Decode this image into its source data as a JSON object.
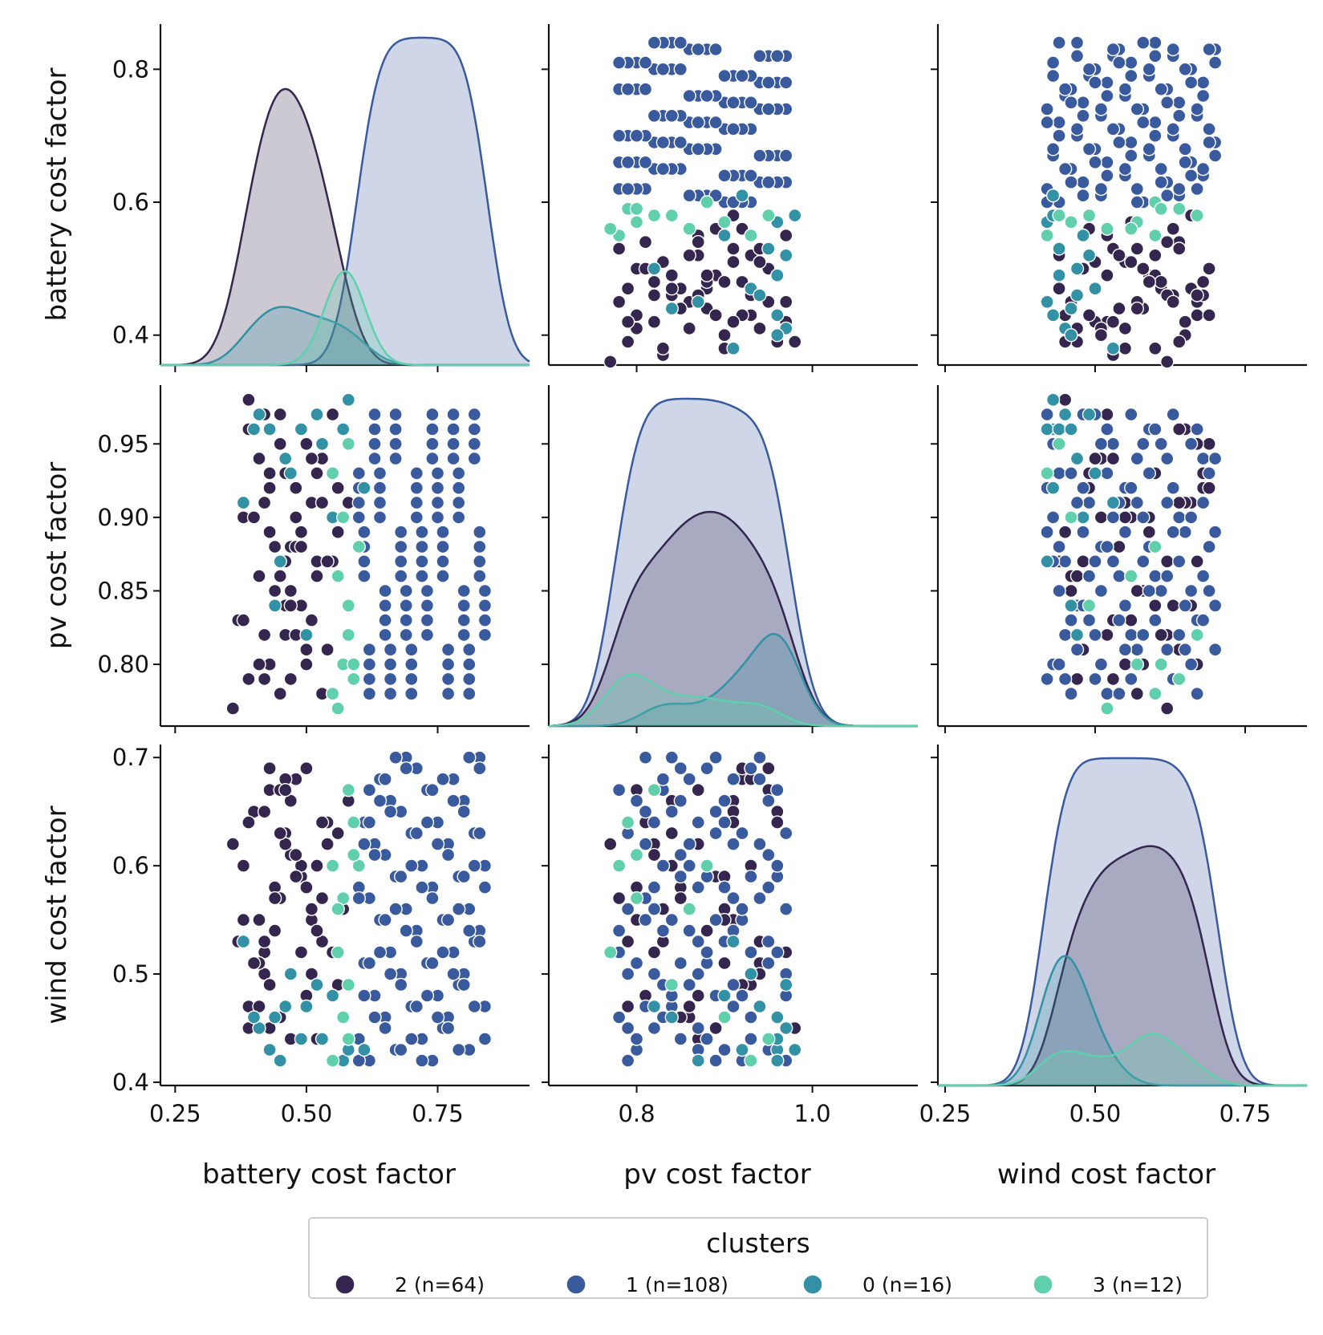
{
  "chart_data": {
    "type": "scatter",
    "variables": [
      "battery cost factor",
      "pv cost factor",
      "wind cost factor"
    ],
    "axis_labels": {
      "x": [
        "battery cost factor",
        "pv cost factor",
        "wind cost factor"
      ],
      "y": [
        "battery cost factor",
        "pv cost factor",
        "wind cost factor"
      ]
    },
    "ranges": {
      "battery": [
        0.222,
        0.925
      ],
      "pv": [
        0.7,
        1.12
      ],
      "wind": [
        0.238,
        0.853
      ],
      "battery_y": [
        0.355,
        0.868
      ],
      "pv_y": [
        0.758,
        0.99
      ],
      "wind_y": [
        0.397,
        0.712
      ]
    },
    "ticks": {
      "battery_x": [
        "0.25",
        "0.50",
        "0.75"
      ],
      "pv_x": [
        "0.8",
        "1.0"
      ],
      "wind_x": [
        "0.25",
        "0.50",
        "0.75"
      ],
      "battery_y": [
        "0.4",
        "0.6",
        "0.8"
      ],
      "pv_y": [
        "0.80",
        "0.85",
        "0.90",
        "0.95"
      ],
      "wind_y": [
        "0.4",
        "0.5",
        "0.6",
        "0.7"
      ]
    },
    "legend": {
      "title": "clusters",
      "placement": "bottom-center",
      "entries": [
        {
          "label": "2 (n=64)",
          "color": "#34264f"
        },
        {
          "label": "1 (n=108)",
          "color": "#3a5a9e"
        },
        {
          "label": "0 (n=16)",
          "color": "#3391a5"
        },
        {
          "label": "3 (n=12)",
          "color": "#5fcfac"
        }
      ]
    },
    "series": [
      {
        "name": "2 (n=64)",
        "color": "#34264f",
        "battery": [
          0.39,
          0.42,
          0.36,
          0.44,
          0.47,
          0.43,
          0.51,
          0.52,
          0.5,
          0.42,
          0.46,
          0.55,
          0.57,
          0.4,
          0.37,
          0.45,
          0.49,
          0.48,
          0.41,
          0.54,
          0.53,
          0.39,
          0.47,
          0.44,
          0.58,
          0.43,
          0.5,
          0.46,
          0.52,
          0.38,
          0.45,
          0.55,
          0.49,
          0.41,
          0.56,
          0.43,
          0.47,
          0.51,
          0.39,
          0.53,
          0.44,
          0.48,
          0.42,
          0.5,
          0.45,
          0.54,
          0.4,
          0.46,
          0.52,
          0.48,
          0.43,
          0.5,
          0.47,
          0.56,
          0.41,
          0.45,
          0.38,
          0.49,
          0.53,
          0.44,
          0.51,
          0.46,
          0.42,
          0.48
        ],
        "pv": [
          0.79,
          0.82,
          0.77,
          0.85,
          0.88,
          0.8,
          0.91,
          0.93,
          0.95,
          0.97,
          0.84,
          0.87,
          0.9,
          0.96,
          0.83,
          0.86,
          0.89,
          0.92,
          0.94,
          0.81,
          0.78,
          0.98,
          0.85,
          0.88,
          0.91,
          0.93,
          0.8,
          0.82,
          0.87,
          0.9,
          0.95,
          0.97,
          0.84,
          0.86,
          0.89,
          0.92,
          0.79,
          0.83,
          0.96,
          0.94,
          0.85,
          0.88,
          0.91,
          0.81,
          0.78,
          0.87,
          0.9,
          0.93,
          0.86,
          0.82,
          0.89,
          0.95,
          0.84,
          0.92,
          0.8,
          0.97,
          0.83,
          0.88,
          0.91,
          0.85,
          0.94,
          0.87,
          0.79,
          0.9
        ],
        "wind": [
          0.47,
          0.52,
          0.62,
          0.58,
          0.44,
          0.67,
          0.55,
          0.6,
          0.69,
          0.5,
          0.63,
          0.48,
          0.56,
          0.65,
          0.53,
          0.46,
          0.59,
          0.68,
          0.51,
          0.64,
          0.57,
          0.45,
          0.61,
          0.54,
          0.66,
          0.49,
          0.58,
          0.62,
          0.44,
          0.55,
          0.67,
          0.52,
          0.6,
          0.47,
          0.63,
          0.69,
          0.5,
          0.56,
          0.64,
          0.53,
          0.46,
          0.59,
          0.65,
          0.48,
          0.57,
          0.62,
          0.51,
          0.68,
          0.54,
          0.61,
          0.45,
          0.58,
          0.66,
          0.49,
          0.55,
          0.63,
          0.6,
          0.52,
          0.64,
          0.57,
          0.5,
          0.67,
          0.53,
          0.59
        ]
      },
      {
        "name": "1 (n=108)",
        "color": "#3a5a9e",
        "battery": [
          0.62,
          0.65,
          0.68,
          0.71,
          0.74,
          0.77,
          0.8,
          0.83,
          0.6,
          0.63,
          0.66,
          0.69,
          0.72,
          0.75,
          0.78,
          0.81,
          0.84,
          0.61,
          0.64,
          0.67,
          0.7,
          0.73,
          0.76,
          0.79,
          0.82,
          0.62,
          0.65,
          0.68,
          0.71,
          0.74,
          0.77,
          0.8,
          0.83,
          0.6,
          0.63,
          0.66,
          0.69,
          0.72,
          0.75,
          0.78,
          0.81,
          0.84,
          0.61,
          0.64,
          0.67,
          0.7,
          0.73,
          0.76,
          0.79,
          0.82,
          0.62,
          0.65,
          0.68,
          0.71,
          0.74,
          0.77,
          0.8,
          0.83,
          0.6,
          0.63,
          0.66,
          0.69,
          0.72,
          0.75,
          0.78,
          0.81,
          0.84,
          0.61,
          0.64,
          0.67,
          0.7,
          0.73,
          0.76,
          0.79,
          0.82,
          0.62,
          0.65,
          0.68,
          0.71,
          0.74,
          0.77,
          0.8,
          0.83,
          0.6,
          0.63,
          0.66,
          0.69,
          0.72,
          0.75,
          0.78,
          0.81,
          0.84,
          0.61,
          0.64,
          0.67,
          0.7,
          0.73,
          0.76,
          0.79,
          0.82,
          0.62,
          0.65,
          0.68,
          0.71,
          0.74,
          0.77,
          0.8,
          0.83
        ],
        "pv": [
          0.79,
          0.83,
          0.87,
          0.91,
          0.95,
          0.81,
          0.85,
          0.89,
          0.93,
          0.97,
          0.78,
          0.82,
          0.86,
          0.9,
          0.94,
          0.8,
          0.84,
          0.88,
          0.92,
          0.96,
          0.79,
          0.83,
          0.87,
          0.91,
          0.95,
          0.81,
          0.85,
          0.89,
          0.93,
          0.97,
          0.78,
          0.82,
          0.86,
          0.9,
          0.94,
          0.8,
          0.84,
          0.88,
          0.92,
          0.96,
          0.79,
          0.83,
          0.87,
          0.91,
          0.95,
          0.81,
          0.85,
          0.89,
          0.93,
          0.97,
          0.78,
          0.82,
          0.86,
          0.9,
          0.94,
          0.8,
          0.84,
          0.88,
          0.92,
          0.96,
          0.79,
          0.83,
          0.87,
          0.91,
          0.95,
          0.81,
          0.85,
          0.89,
          0.93,
          0.97,
          0.78,
          0.82,
          0.86,
          0.9,
          0.94,
          0.8,
          0.84,
          0.88,
          0.92,
          0.96,
          0.79,
          0.83,
          0.87,
          0.91,
          0.95,
          0.81,
          0.85,
          0.89,
          0.93,
          0.97,
          0.78,
          0.82,
          0.86,
          0.9,
          0.94,
          0.8,
          0.84,
          0.88,
          0.92,
          0.96,
          0.79,
          0.83,
          0.87,
          0.91,
          0.95,
          0.81,
          0.85,
          0.89
        ],
        "wind": [
          0.42,
          0.46,
          0.5,
          0.54,
          0.58,
          0.62,
          0.66,
          0.7,
          0.44,
          0.48,
          0.52,
          0.56,
          0.6,
          0.64,
          0.68,
          0.43,
          0.47,
          0.51,
          0.55,
          0.59,
          0.63,
          0.67,
          0.45,
          0.49,
          0.53,
          0.57,
          0.61,
          0.65,
          0.69,
          0.42,
          0.46,
          0.5,
          0.54,
          0.58,
          0.62,
          0.66,
          0.7,
          0.44,
          0.48,
          0.52,
          0.56,
          0.6,
          0.64,
          0.68,
          0.43,
          0.47,
          0.51,
          0.55,
          0.59,
          0.63,
          0.67,
          0.45,
          0.49,
          0.53,
          0.57,
          0.61,
          0.65,
          0.69,
          0.42,
          0.46,
          0.5,
          0.54,
          0.58,
          0.62,
          0.66,
          0.7,
          0.44,
          0.48,
          0.52,
          0.56,
          0.6,
          0.64,
          0.68,
          0.43,
          0.47,
          0.51,
          0.55,
          0.59,
          0.63,
          0.67,
          0.45,
          0.49,
          0.53,
          0.57,
          0.61,
          0.65,
          0.69,
          0.42,
          0.46,
          0.5,
          0.54,
          0.58,
          0.62,
          0.66,
          0.7,
          0.44,
          0.48,
          0.52,
          0.56,
          0.6,
          0.64,
          0.68,
          0.43,
          0.47,
          0.51,
          0.55,
          0.59,
          0.63
        ]
      },
      {
        "name": "0 (n=16)",
        "color": "#3391a5",
        "battery": [
          0.41,
          0.43,
          0.47,
          0.5,
          0.53,
          0.57,
          0.38,
          0.44,
          0.52,
          0.58,
          0.46,
          0.49,
          0.55,
          0.4,
          0.61,
          0.45
        ],
        "pv": [
          0.97,
          0.96,
          0.93,
          0.82,
          0.95,
          0.96,
          0.91,
          0.84,
          0.97,
          0.98,
          0.94,
          0.96,
          0.9,
          0.96,
          0.92,
          0.87
        ],
        "wind": [
          0.45,
          0.43,
          0.5,
          0.47,
          0.44,
          0.42,
          0.53,
          0.46,
          0.49,
          0.43,
          0.47,
          0.44,
          0.48,
          0.46,
          0.43,
          0.42
        ],
        "battery_scatter_y": [
          0.54,
          0.5,
          0.44,
          0.42,
          0.39,
          0.53,
          0.48,
          0.45,
          0.41,
          0.5,
          0.43,
          0.55,
          0.47,
          0.42,
          0.49,
          0.46
        ]
      },
      {
        "name": "3 (n=12)",
        "color": "#5fcfac",
        "battery": [
          0.55,
          0.57,
          0.59,
          0.58,
          0.56,
          0.6,
          0.57,
          0.58,
          0.55,
          0.59,
          0.56,
          0.58
        ],
        "pv": [
          0.78,
          0.8,
          0.79,
          0.82,
          0.86,
          0.88,
          0.9,
          0.84,
          0.93,
          0.8,
          0.77,
          0.95
        ],
        "wind": [
          0.6,
          0.57,
          0.64,
          0.67,
          0.56,
          0.6,
          0.46,
          0.49,
          0.42,
          0.61,
          0.52,
          0.44
        ]
      }
    ]
  }
}
